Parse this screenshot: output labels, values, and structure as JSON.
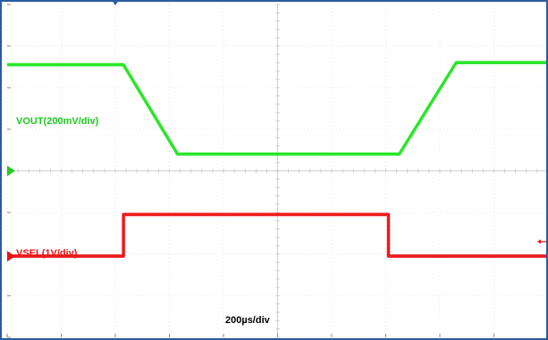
{
  "chart_data": {
    "type": "line",
    "grid": true,
    "x_divisions": 10,
    "y_divisions": 8,
    "timebase_label": "200µs/div",
    "series": [
      {
        "name": "VOUT(200mV/div)",
        "color": "#22e622",
        "x_div": [
          0,
          2.15,
          3.15,
          7.25,
          8.3,
          10
        ],
        "y_div": [
          6.55,
          6.55,
          4.4,
          4.4,
          6.6,
          6.6
        ]
      },
      {
        "name": "VSEL(1V/div)",
        "color": "#ee1111",
        "x_div": [
          0,
          2.15,
          2.15,
          7.05,
          7.05,
          10
        ],
        "y_div": [
          1.95,
          1.95,
          2.95,
          2.95,
          1.95,
          1.95
        ]
      }
    ],
    "markers": {
      "trigger_color": "#1a5fb4",
      "ch1_color": "#22cc22",
      "ch2_color": "#ee1111"
    }
  }
}
